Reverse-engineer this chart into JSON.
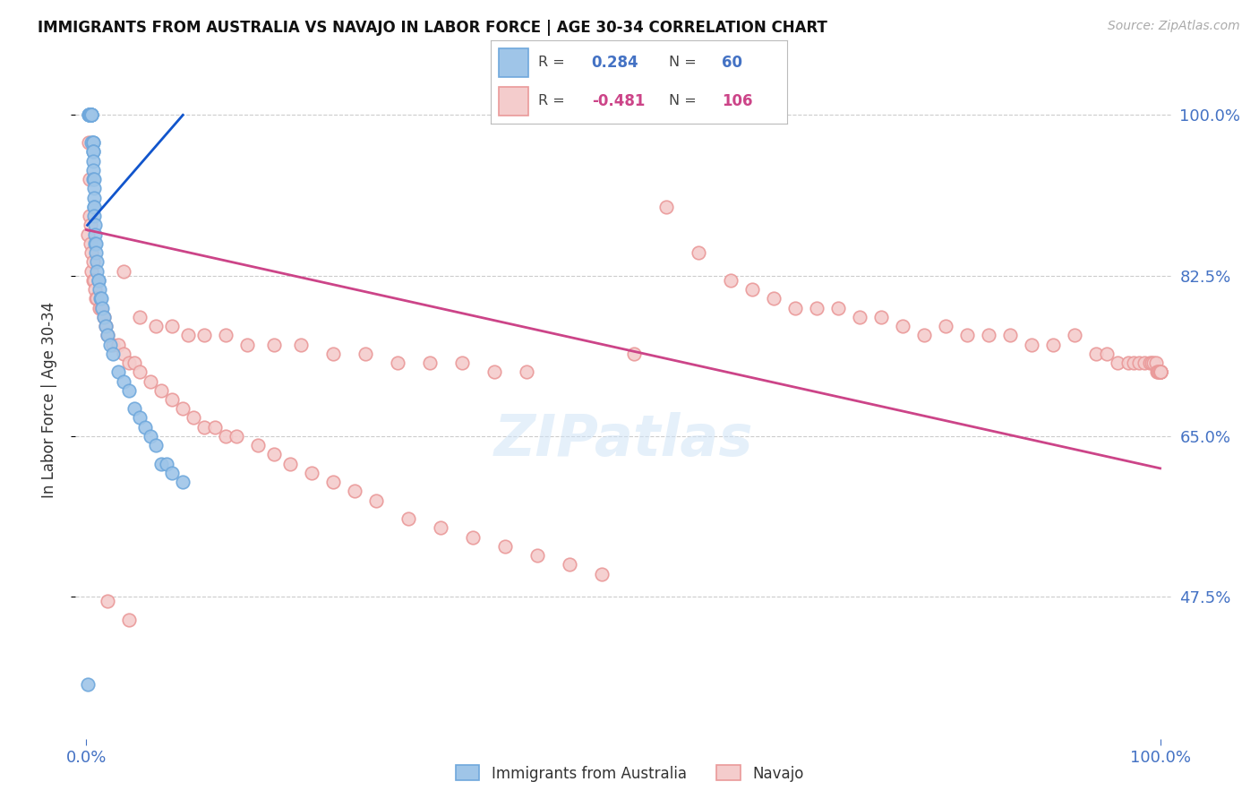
{
  "title": "IMMIGRANTS FROM AUSTRALIA VS NAVAJO IN LABOR FORCE | AGE 30-34 CORRELATION CHART",
  "source": "Source: ZipAtlas.com",
  "ylabel": "In Labor Force | Age 30-34",
  "legend_r_aus": "0.284",
  "legend_n_aus": "60",
  "legend_r_nav": "-0.481",
  "legend_n_nav": "106",
  "watermark": "ZIPatlas",
  "blue_scatter_x": [
    0.001,
    0.002,
    0.002,
    0.003,
    0.003,
    0.003,
    0.003,
    0.004,
    0.004,
    0.004,
    0.004,
    0.004,
    0.005,
    0.005,
    0.005,
    0.005,
    0.005,
    0.006,
    0.006,
    0.006,
    0.006,
    0.006,
    0.006,
    0.006,
    0.007,
    0.007,
    0.007,
    0.007,
    0.007,
    0.007,
    0.008,
    0.008,
    0.008,
    0.009,
    0.009,
    0.01,
    0.01,
    0.011,
    0.011,
    0.012,
    0.013,
    0.014,
    0.015,
    0.016,
    0.018,
    0.02,
    0.022,
    0.025,
    0.03,
    0.035,
    0.04,
    0.045,
    0.05,
    0.055,
    0.06,
    0.065,
    0.07,
    0.075,
    0.08,
    0.09
  ],
  "blue_scatter_y": [
    0.38,
    1.0,
    1.0,
    1.0,
    1.0,
    1.0,
    1.0,
    1.0,
    1.0,
    1.0,
    1.0,
    1.0,
    1.0,
    1.0,
    1.0,
    1.0,
    0.97,
    0.97,
    0.97,
    0.96,
    0.96,
    0.95,
    0.94,
    0.93,
    0.93,
    0.92,
    0.91,
    0.9,
    0.9,
    0.89,
    0.88,
    0.87,
    0.86,
    0.86,
    0.85,
    0.84,
    0.83,
    0.82,
    0.82,
    0.81,
    0.8,
    0.8,
    0.79,
    0.78,
    0.77,
    0.76,
    0.75,
    0.74,
    0.72,
    0.71,
    0.7,
    0.68,
    0.67,
    0.66,
    0.65,
    0.64,
    0.62,
    0.62,
    0.61,
    0.6
  ],
  "pink_scatter_x": [
    0.001,
    0.002,
    0.003,
    0.003,
    0.004,
    0.004,
    0.005,
    0.005,
    0.006,
    0.006,
    0.007,
    0.008,
    0.009,
    0.01,
    0.012,
    0.014,
    0.016,
    0.018,
    0.02,
    0.025,
    0.03,
    0.035,
    0.04,
    0.045,
    0.05,
    0.06,
    0.07,
    0.08,
    0.09,
    0.1,
    0.11,
    0.12,
    0.13,
    0.14,
    0.16,
    0.175,
    0.19,
    0.21,
    0.23,
    0.25,
    0.27,
    0.3,
    0.33,
    0.36,
    0.39,
    0.42,
    0.45,
    0.48,
    0.51,
    0.54,
    0.57,
    0.6,
    0.62,
    0.64,
    0.66,
    0.68,
    0.7,
    0.72,
    0.74,
    0.76,
    0.78,
    0.8,
    0.82,
    0.84,
    0.86,
    0.88,
    0.9,
    0.92,
    0.94,
    0.95,
    0.96,
    0.97,
    0.975,
    0.98,
    0.985,
    0.99,
    0.992,
    0.994,
    0.996,
    0.997,
    0.998,
    0.999,
    1.0,
    1.0,
    1.0,
    1.0,
    1.0,
    0.035,
    0.05,
    0.065,
    0.08,
    0.095,
    0.11,
    0.13,
    0.15,
    0.175,
    0.2,
    0.23,
    0.26,
    0.29,
    0.32,
    0.35,
    0.38,
    0.41,
    0.02,
    0.04
  ],
  "pink_scatter_y": [
    0.87,
    0.97,
    0.93,
    0.89,
    0.88,
    0.86,
    0.85,
    0.83,
    0.84,
    0.82,
    0.82,
    0.81,
    0.8,
    0.8,
    0.79,
    0.79,
    0.78,
    0.77,
    0.76,
    0.75,
    0.75,
    0.74,
    0.73,
    0.73,
    0.72,
    0.71,
    0.7,
    0.69,
    0.68,
    0.67,
    0.66,
    0.66,
    0.65,
    0.65,
    0.64,
    0.63,
    0.62,
    0.61,
    0.6,
    0.59,
    0.58,
    0.56,
    0.55,
    0.54,
    0.53,
    0.52,
    0.51,
    0.5,
    0.74,
    0.9,
    0.85,
    0.82,
    0.81,
    0.8,
    0.79,
    0.79,
    0.79,
    0.78,
    0.78,
    0.77,
    0.76,
    0.77,
    0.76,
    0.76,
    0.76,
    0.75,
    0.75,
    0.76,
    0.74,
    0.74,
    0.73,
    0.73,
    0.73,
    0.73,
    0.73,
    0.73,
    0.73,
    0.73,
    0.73,
    0.72,
    0.72,
    0.72,
    0.72,
    0.72,
    0.72,
    0.72,
    0.72,
    0.83,
    0.78,
    0.77,
    0.77,
    0.76,
    0.76,
    0.76,
    0.75,
    0.75,
    0.75,
    0.74,
    0.74,
    0.73,
    0.73,
    0.73,
    0.72,
    0.72,
    0.47,
    0.45
  ],
  "pink_line_x": [
    0.0,
    1.0
  ],
  "pink_line_y": [
    0.875,
    0.615
  ],
  "blue_line_x": [
    0.001,
    0.09
  ],
  "blue_line_y": [
    0.88,
    1.0
  ],
  "blue_dot_color": "#9fc5e8",
  "blue_edge_color": "#6fa8dc",
  "pink_dot_color": "#f4cccc",
  "pink_edge_color": "#ea9999",
  "blue_line_color": "#1155cc",
  "pink_line_color": "#cc4488",
  "grid_color": "#cccccc",
  "tick_label_color": "#4472c4",
  "background_color": "#ffffff",
  "xlim": [
    -0.01,
    1.01
  ],
  "ylim": [
    0.32,
    1.06
  ],
  "ytick_positions": [
    0.475,
    0.65,
    0.825,
    1.0
  ],
  "ytick_labels": [
    "47.5%",
    "65.0%",
    "82.5%",
    "100.0%"
  ]
}
